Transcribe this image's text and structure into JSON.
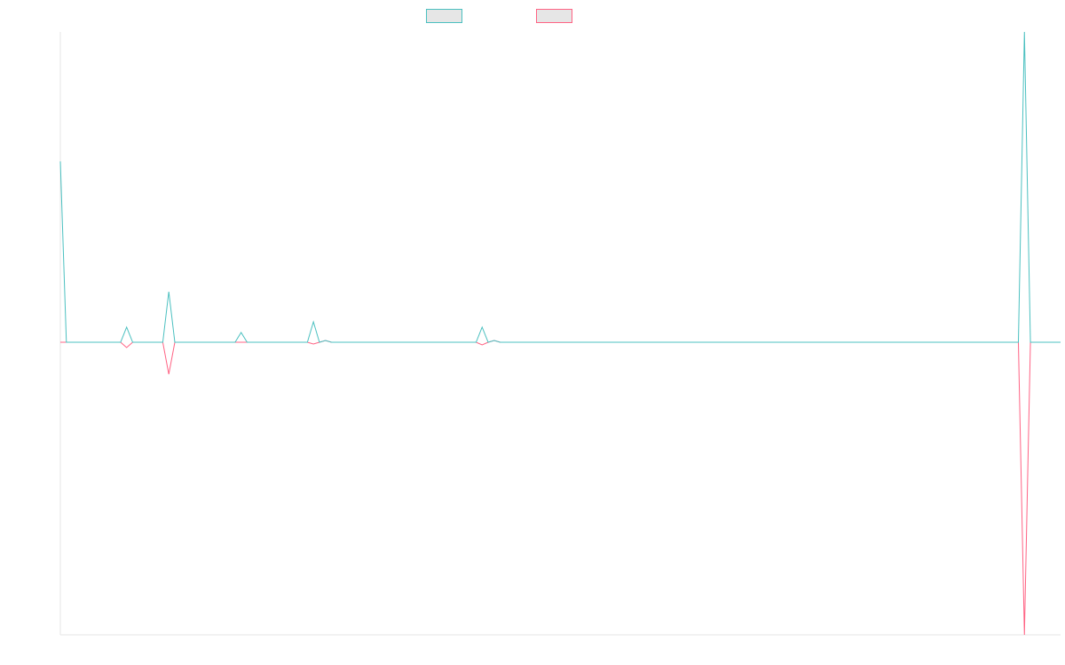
{
  "chart_data": {
    "type": "line",
    "x": [
      0,
      1,
      10,
      11,
      12,
      17,
      18,
      19,
      29,
      30,
      31,
      41,
      42,
      43,
      44,
      45,
      69,
      70,
      71,
      72,
      73,
      159,
      160,
      161,
      166
    ],
    "series": [
      {
        "color": "#4bc0c0",
        "values": [
          20.4,
          0,
          0,
          1.7,
          0,
          0,
          5.7,
          0,
          0,
          1.1,
          0,
          0,
          2.3,
          0,
          0.2,
          0,
          0,
          1.7,
          0,
          0.2,
          0,
          0,
          35,
          0,
          0
        ]
      },
      {
        "color": "#ff6384",
        "values": [
          0,
          0,
          0,
          -0.6,
          0,
          0,
          -3.6,
          0,
          0,
          0,
          0,
          0,
          -0.2,
          0,
          0.2,
          0,
          0,
          -0.3,
          0,
          0.2,
          0,
          0,
          -33,
          0,
          0
        ]
      }
    ],
    "xlim": [
      0,
      166
    ],
    "ylim": [
      -33,
      35
    ],
    "legend": "top"
  }
}
